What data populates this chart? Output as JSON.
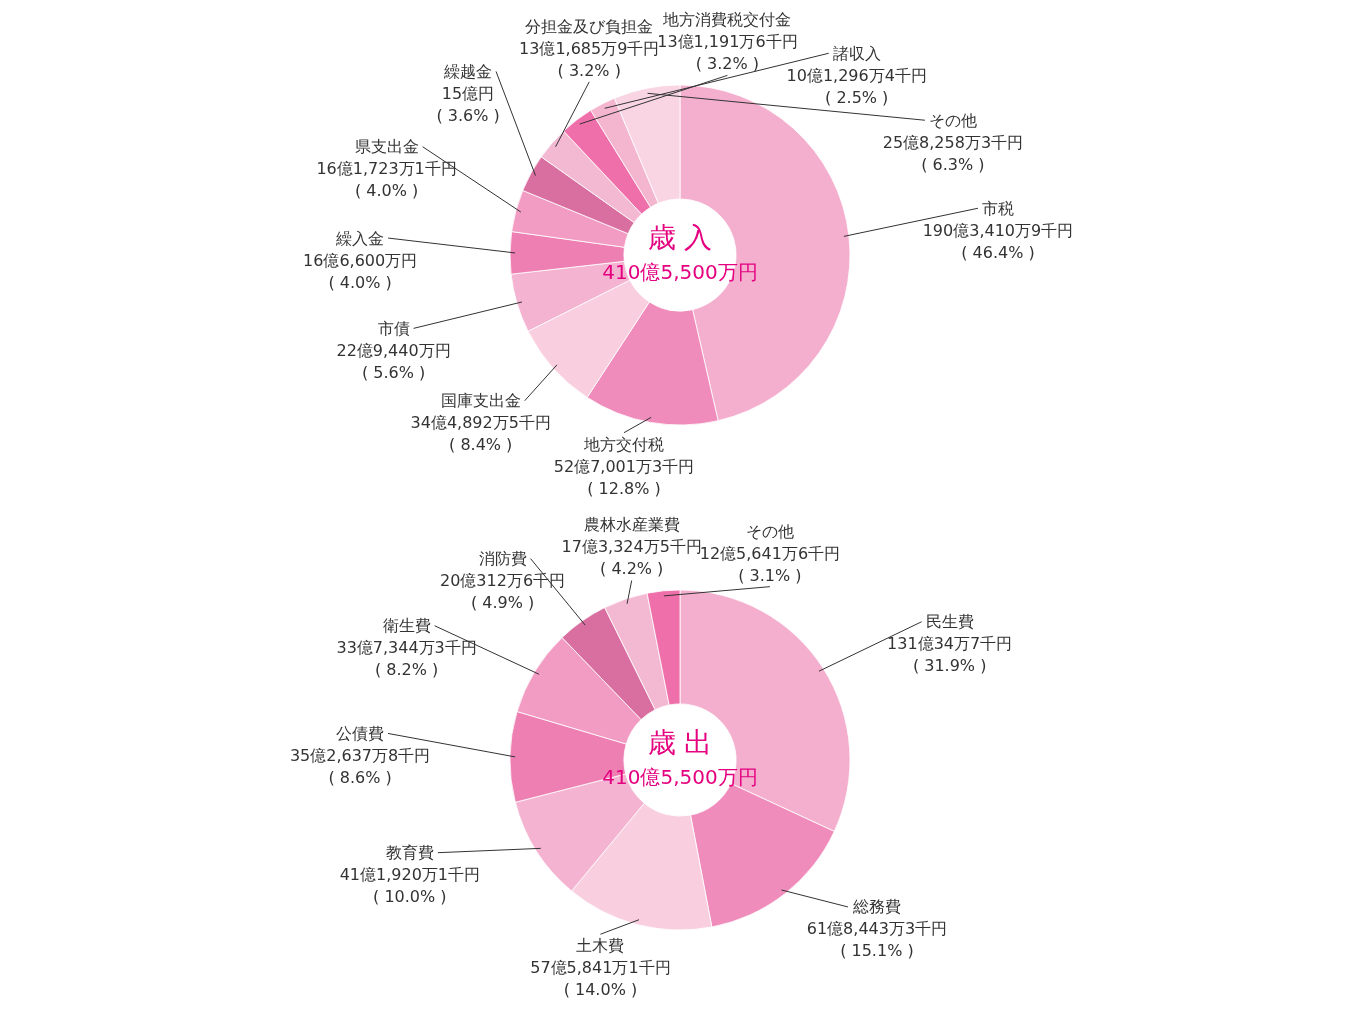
{
  "chart_data": [
    {
      "type": "donut",
      "title": "歳 入",
      "subtitle": "410億5,500万円",
      "categories": [
        "市税",
        "地方交付税",
        "国庫支出金",
        "市債",
        "繰入金",
        "県支出金",
        "繰越金",
        "分担金及び負担金",
        "地方消費税交付金",
        "諸収入",
        "その他"
      ],
      "values": [
        46.4,
        12.8,
        8.4,
        5.6,
        4.0,
        4.0,
        3.6,
        3.2,
        3.2,
        2.5,
        6.3
      ],
      "value_labels": [
        "190億3,410万9千円\n( 46.4% )",
        "52億7,001万3千円\n( 12.8% )",
        "34億4,892万5千円\n( 8.4% )",
        "22億9,440万円\n( 5.6% )",
        "16億6,600万円\n( 4.0% )",
        "16億1,723万1千円\n( 4.0% )",
        "15億円\n( 3.6% )",
        "13億1,685万9千円\n( 3.2% )",
        "13億1,191万6千円\n( 3.2% )",
        "10億1,296万4千円\n( 2.5% )",
        "25億8,258万3千円\n( 6.3% )"
      ],
      "colors": [
        "#f4afcf",
        "#f08cbb",
        "#f9cfe0",
        "#f4b3d0",
        "#ee7fb3",
        "#f29cc4",
        "#d86fa0",
        "#f4b9d2",
        "#ee6fa9",
        "#f4b5cf",
        "#f9d5e4"
      ]
    },
    {
      "type": "donut",
      "title": "歳 出",
      "subtitle": "410億5,500万円",
      "categories": [
        "民生費",
        "総務費",
        "土木費",
        "教育費",
        "公債費",
        "衛生費",
        "消防費",
        "農林水産業費",
        "その他"
      ],
      "values": [
        31.9,
        15.1,
        14.0,
        10.0,
        8.6,
        8.2,
        4.9,
        4.2,
        3.1
      ],
      "value_labels": [
        "131億34万7千円\n( 31.9% )",
        "61億8,443万3千円\n( 15.1% )",
        "57億5,841万1千円\n( 14.0% )",
        "41億1,920万1千円\n( 10.0% )",
        "35億2,637万8千円\n( 8.6% )",
        "33億7,344万3千円\n( 8.2% )",
        "20億312万6千円\n( 4.9% )",
        "17億3,324万5千円\n( 4.2% )",
        "12億5,641万6千円\n( 3.1% )"
      ],
      "colors": [
        "#f4afcf",
        "#f08cbb",
        "#f9cfe0",
        "#f4b3d0",
        "#ee7fb3",
        "#f29cc4",
        "#d86fa0",
        "#f4b9d2",
        "#ee6fa9"
      ]
    }
  ]
}
